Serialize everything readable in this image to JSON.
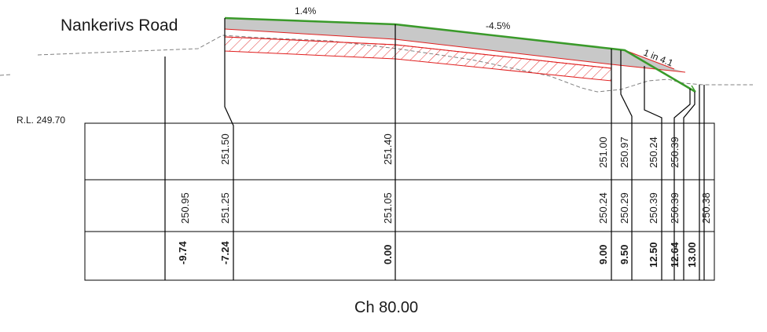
{
  "title": "Nankerivs Road",
  "datum": "R.L. 249.70",
  "chainage": "Ch 80.00",
  "grades": {
    "left": "1.4%",
    "right": "-4.5%",
    "batter": "1 in 4.1"
  },
  "colors": {
    "finished_surface": "#3a9a2a",
    "pavement": "#e02020",
    "natural_surface": "#808080",
    "lines": "#000000"
  },
  "rows": {
    "design": [
      "251.50",
      "251.40",
      "251.00",
      "250.97",
      "250.24",
      "250.39"
    ],
    "natural": [
      "250.95",
      "251.25",
      "251.05",
      "250.24",
      "250.29",
      "250.39",
      "250.39",
      "250.38"
    ],
    "offsets": [
      "-9.74",
      "-7.24",
      "0.00",
      "9.00",
      "9.50",
      "12.50",
      "12.64",
      "13.00"
    ]
  }
}
